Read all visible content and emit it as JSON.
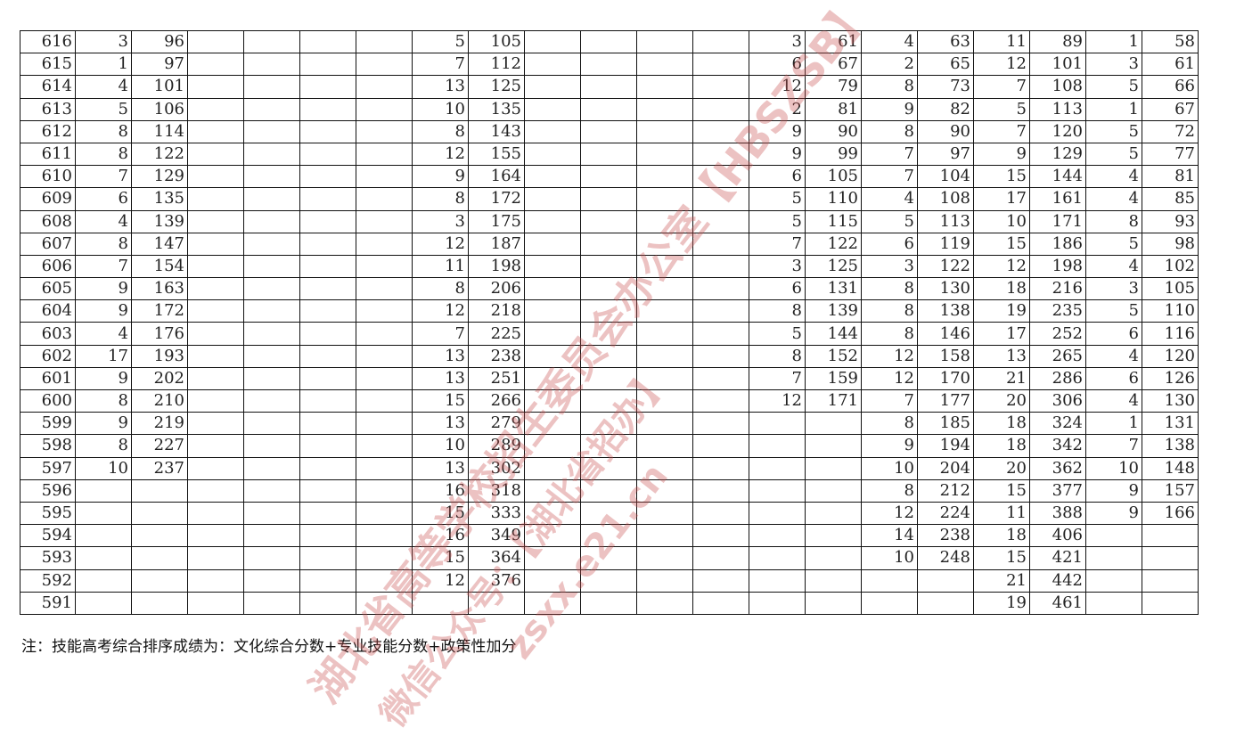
{
  "scores": [
    "616",
    "615",
    "614",
    "613",
    "612",
    "611",
    "610",
    "609",
    "608",
    "607",
    "606",
    "605",
    "604",
    "603",
    "602",
    "601",
    "600",
    "599",
    "598",
    "597",
    "596",
    "595",
    "594",
    "593",
    "592",
    "591"
  ],
  "groups": [
    [
      [
        "3",
        "96"
      ],
      [
        "1",
        "97"
      ],
      [
        "4",
        "101"
      ],
      [
        "5",
        "106"
      ],
      [
        "8",
        "114"
      ],
      [
        "8",
        "122"
      ],
      [
        "7",
        "129"
      ],
      [
        "6",
        "135"
      ],
      [
        "4",
        "139"
      ],
      [
        "8",
        "147"
      ],
      [
        "7",
        "154"
      ],
      [
        "9",
        "163"
      ],
      [
        "9",
        "172"
      ],
      [
        "4",
        "176"
      ],
      [
        "17",
        "193"
      ],
      [
        "9",
        "202"
      ],
      [
        "8",
        "210"
      ],
      [
        "9",
        "219"
      ],
      [
        "8",
        "227"
      ],
      [
        "10",
        "237"
      ]
    ],
    [],
    [],
    [
      [
        "5",
        "105"
      ],
      [
        "7",
        "112"
      ],
      [
        "13",
        "125"
      ],
      [
        "10",
        "135"
      ],
      [
        "8",
        "143"
      ],
      [
        "12",
        "155"
      ],
      [
        "9",
        "164"
      ],
      [
        "8",
        "172"
      ],
      [
        "3",
        "175"
      ],
      [
        "12",
        "187"
      ],
      [
        "11",
        "198"
      ],
      [
        "8",
        "206"
      ],
      [
        "12",
        "218"
      ],
      [
        "7",
        "225"
      ],
      [
        "13",
        "238"
      ],
      [
        "13",
        "251"
      ],
      [
        "15",
        "266"
      ],
      [
        "13",
        "279"
      ],
      [
        "10",
        "289"
      ],
      [
        "13",
        "302"
      ],
      [
        "16",
        "318"
      ],
      [
        "15",
        "333"
      ],
      [
        "16",
        "349"
      ],
      [
        "15",
        "364"
      ],
      [
        "12",
        "376"
      ]
    ],
    [],
    [],
    [
      [
        "3",
        "61"
      ],
      [
        "6",
        "67"
      ],
      [
        "12",
        "79"
      ],
      [
        "2",
        "81"
      ],
      [
        "9",
        "90"
      ],
      [
        "9",
        "99"
      ],
      [
        "6",
        "105"
      ],
      [
        "5",
        "110"
      ],
      [
        "5",
        "115"
      ],
      [
        "7",
        "122"
      ],
      [
        "3",
        "125"
      ],
      [
        "6",
        "131"
      ],
      [
        "8",
        "139"
      ],
      [
        "5",
        "144"
      ],
      [
        "8",
        "152"
      ],
      [
        "7",
        "159"
      ],
      [
        "12",
        "171"
      ]
    ],
    [
      [
        "4",
        "63"
      ],
      [
        "2",
        "65"
      ],
      [
        "8",
        "73"
      ],
      [
        "9",
        "82"
      ],
      [
        "8",
        "90"
      ],
      [
        "7",
        "97"
      ],
      [
        "7",
        "104"
      ],
      [
        "4",
        "108"
      ],
      [
        "5",
        "113"
      ],
      [
        "6",
        "119"
      ],
      [
        "3",
        "122"
      ],
      [
        "8",
        "130"
      ],
      [
        "8",
        "138"
      ],
      [
        "8",
        "146"
      ],
      [
        "12",
        "158"
      ],
      [
        "12",
        "170"
      ],
      [
        "7",
        "177"
      ],
      [
        "8",
        "185"
      ],
      [
        "9",
        "194"
      ],
      [
        "10",
        "204"
      ],
      [
        "8",
        "212"
      ],
      [
        "12",
        "224"
      ],
      [
        "14",
        "238"
      ],
      [
        "10",
        "248"
      ]
    ],
    [
      [
        "11",
        "89"
      ],
      [
        "12",
        "101"
      ],
      [
        "7",
        "108"
      ],
      [
        "5",
        "113"
      ],
      [
        "7",
        "120"
      ],
      [
        "9",
        "129"
      ],
      [
        "15",
        "144"
      ],
      [
        "17",
        "161"
      ],
      [
        "10",
        "171"
      ],
      [
        "15",
        "186"
      ],
      [
        "12",
        "198"
      ],
      [
        "18",
        "216"
      ],
      [
        "19",
        "235"
      ],
      [
        "17",
        "252"
      ],
      [
        "13",
        "265"
      ],
      [
        "21",
        "286"
      ],
      [
        "20",
        "306"
      ],
      [
        "18",
        "324"
      ],
      [
        "18",
        "342"
      ],
      [
        "20",
        "362"
      ],
      [
        "15",
        "377"
      ],
      [
        "11",
        "388"
      ],
      [
        "18",
        "406"
      ],
      [
        "15",
        "421"
      ],
      [
        "21",
        "442"
      ],
      [
        "19",
        "461"
      ]
    ],
    [
      [
        "1",
        "58"
      ],
      [
        "3",
        "61"
      ],
      [
        "5",
        "66"
      ],
      [
        "1",
        "67"
      ],
      [
        "5",
        "72"
      ],
      [
        "5",
        "77"
      ],
      [
        "4",
        "81"
      ],
      [
        "4",
        "85"
      ],
      [
        "8",
        "93"
      ],
      [
        "5",
        "98"
      ],
      [
        "4",
        "102"
      ],
      [
        "3",
        "105"
      ],
      [
        "5",
        "110"
      ],
      [
        "6",
        "116"
      ],
      [
        "4",
        "120"
      ],
      [
        "6",
        "126"
      ],
      [
        "4",
        "130"
      ],
      [
        "1",
        "131"
      ],
      [
        "7",
        "138"
      ],
      [
        "10",
        "148"
      ],
      [
        "9",
        "157"
      ],
      [
        "9",
        "166"
      ]
    ]
  ],
  "note": "注：技能高考综合排序成绩为：文化综合分数+专业技能分数+政策性加分",
  "watermark": {
    "line1": "湖北省高等学校招生委员会办公室【HBSZSB】",
    "line2": "微信公众号：【湖北省招办】",
    "line3": "zsxx.e21.cn",
    "color": "#c85050"
  }
}
